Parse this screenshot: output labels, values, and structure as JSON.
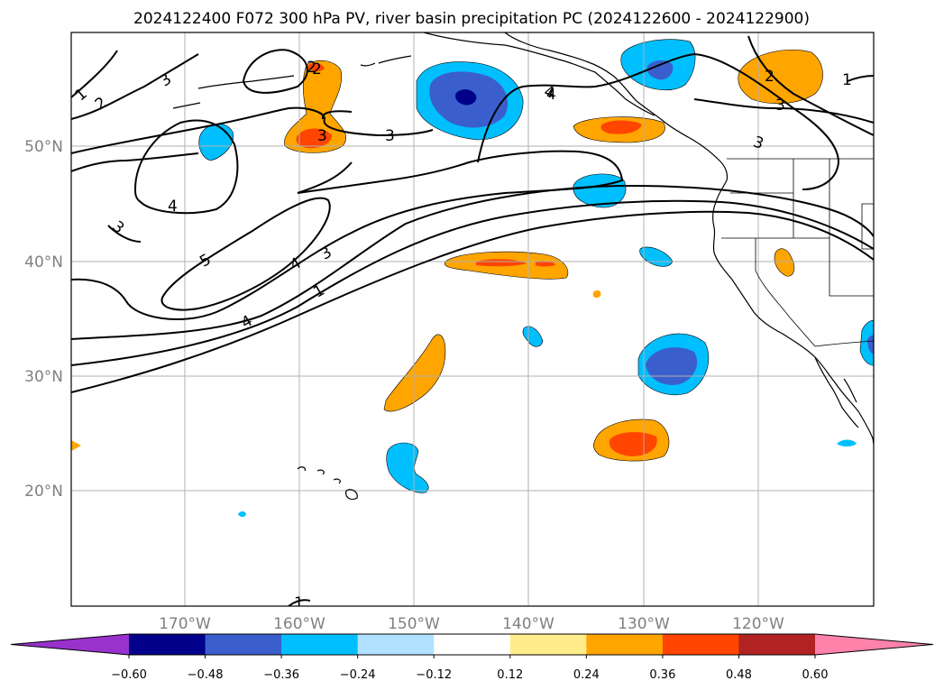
{
  "title": "2024122400 F072 300 hPa PV, river basin precipitation PC (2024122600 - 2024122900)",
  "map": {
    "lon_labels": [
      "170°W",
      "160°W",
      "150°W",
      "140°W",
      "130°W",
      "120°W"
    ],
    "lat_labels": [
      "50°N",
      "40°N",
      "30°N",
      "20°N"
    ],
    "contour_labels": [
      "1",
      "2",
      "3",
      "4",
      "5",
      "3",
      "4",
      "3",
      "4",
      "3",
      "4",
      "1",
      "2",
      "3",
      "3",
      "4",
      "2",
      "1",
      "2",
      "1",
      "3"
    ]
  },
  "colorbar": {
    "ticks": [
      "−0.60",
      "−0.48",
      "−0.36",
      "−0.24",
      "−0.12",
      "0.12",
      "0.24",
      "0.36",
      "0.48",
      "0.60"
    ],
    "colors": [
      "#9932cc",
      "#00008b",
      "#3a5fcd",
      "#00bfff",
      "#b0e2ff",
      "#ffffff",
      "#ffec8b",
      "#ffa500",
      "#ff4500",
      "#b22222",
      "#ff82ab"
    ]
  }
}
